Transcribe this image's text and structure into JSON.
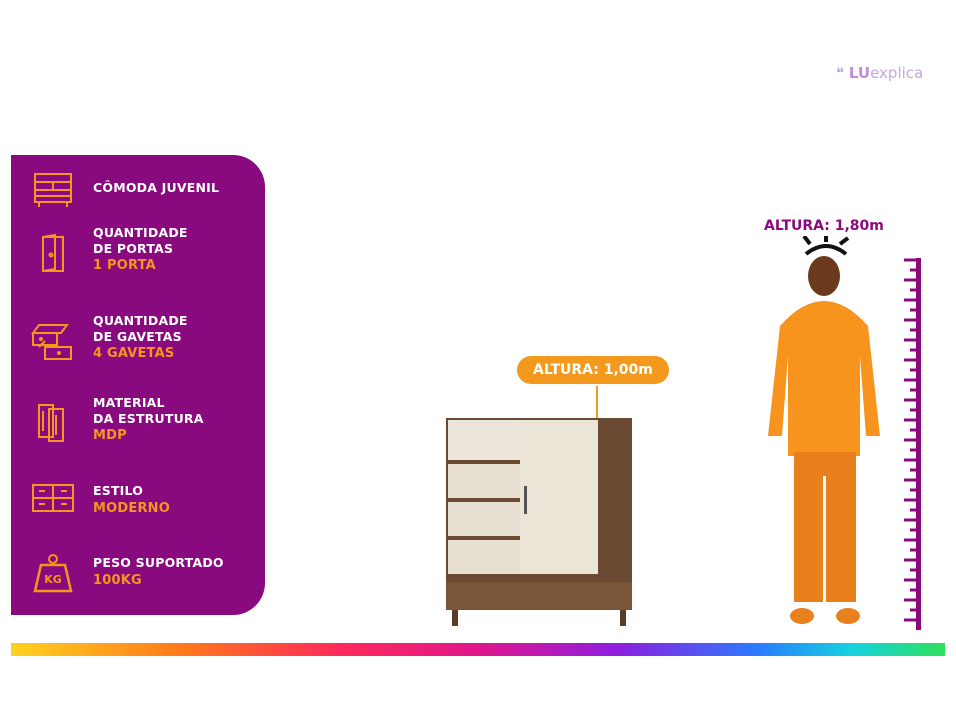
{
  "brand": {
    "logo_prefix": "LU",
    "logo_suffix": "explica"
  },
  "features": [
    {
      "icon": "dresser-icon",
      "label": "CÔMODA JUVENIL",
      "value": ""
    },
    {
      "icon": "door-icon",
      "label": "QUANTIDADE\nDE PORTAS",
      "value": "1 PORTA"
    },
    {
      "icon": "drawers-icon",
      "label": "QUANTIDADE\nDE GAVETAS",
      "value": "4 GAVETAS"
    },
    {
      "icon": "wood-panels-icon",
      "label": "MATERIAL\nDA ESTRUTURA",
      "value": "MDP"
    },
    {
      "icon": "cabinet-style-icon",
      "label": "ESTILO",
      "value": "MODERNO"
    },
    {
      "icon": "weight-kg-icon",
      "label": "PESO SUPORTADO",
      "value": "100KG"
    }
  ],
  "weight_icon_text": "KG",
  "product_height": "ALTURA: 1,00m",
  "person_height": "ALTURA: 1,80m",
  "colors": {
    "panel": "#890a7e",
    "accent": "#f7941d",
    "text": "#ffffff"
  }
}
